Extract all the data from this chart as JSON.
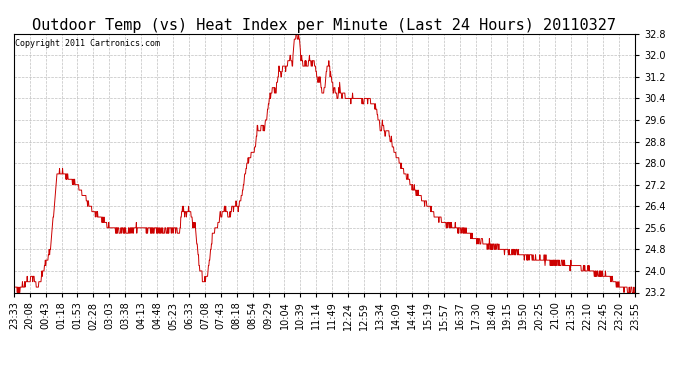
{
  "title": "Outdoor Temp (vs) Heat Index per Minute (Last 24 Hours) 20110327",
  "copyright_text": "Copyright 2011 Cartronics.com",
  "ylim": [
    23.2,
    32.8
  ],
  "yticks": [
    23.2,
    24.0,
    24.8,
    25.6,
    26.4,
    27.2,
    28.0,
    28.8,
    29.6,
    30.4,
    31.2,
    32.0,
    32.8
  ],
  "line_color": "#cc0000",
  "bg_color": "#ffffff",
  "grid_color": "#b0b0b0",
  "title_fontsize": 11,
  "tick_fontsize": 7,
  "x_labels": [
    "23:33",
    "20:08",
    "00:43",
    "01:18",
    "01:53",
    "02:28",
    "03:03",
    "03:38",
    "04:13",
    "04:48",
    "05:23",
    "06:33",
    "07:08",
    "07:43",
    "08:18",
    "08:54",
    "09:29",
    "10:04",
    "10:39",
    "11:14",
    "11:49",
    "12:24",
    "12:59",
    "13:34",
    "14:09",
    "14:44",
    "15:19",
    "15:57",
    "16:37",
    "17:30",
    "18:40",
    "19:15",
    "19:50",
    "20:25",
    "21:00",
    "21:35",
    "22:10",
    "22:45",
    "23:20",
    "23:55"
  ],
  "keypoints": [
    [
      0,
      23.35
    ],
    [
      10,
      23.3
    ],
    [
      45,
      23.8
    ],
    [
      55,
      23.35
    ],
    [
      85,
      24.8
    ],
    [
      100,
      27.6
    ],
    [
      110,
      27.7
    ],
    [
      120,
      27.55
    ],
    [
      130,
      27.4
    ],
    [
      145,
      27.25
    ],
    [
      155,
      26.95
    ],
    [
      165,
      26.7
    ],
    [
      180,
      26.3
    ],
    [
      200,
      26.0
    ],
    [
      215,
      25.7
    ],
    [
      230,
      25.55
    ],
    [
      245,
      25.52
    ],
    [
      260,
      25.5
    ],
    [
      275,
      25.52
    ],
    [
      285,
      25.6
    ],
    [
      295,
      25.6
    ],
    [
      305,
      25.52
    ],
    [
      315,
      25.5
    ],
    [
      335,
      25.52
    ],
    [
      355,
      25.5
    ],
    [
      370,
      25.52
    ],
    [
      385,
      25.5
    ],
    [
      390,
      26.3
    ],
    [
      400,
      26.1
    ],
    [
      405,
      26.35
    ],
    [
      410,
      26.2
    ],
    [
      415,
      25.7
    ],
    [
      420,
      25.6
    ],
    [
      430,
      24.2
    ],
    [
      440,
      23.6
    ],
    [
      450,
      24.0
    ],
    [
      460,
      25.3
    ],
    [
      475,
      25.8
    ],
    [
      480,
      26.1
    ],
    [
      490,
      26.3
    ],
    [
      500,
      26.0
    ],
    [
      505,
      26.4
    ],
    [
      510,
      26.3
    ],
    [
      515,
      26.5
    ],
    [
      520,
      26.3
    ],
    [
      530,
      27.0
    ],
    [
      540,
      28.0
    ],
    [
      550,
      28.3
    ],
    [
      560,
      28.6
    ],
    [
      565,
      29.4
    ],
    [
      570,
      29.1
    ],
    [
      575,
      29.5
    ],
    [
      580,
      29.2
    ],
    [
      585,
      29.6
    ],
    [
      590,
      30.2
    ],
    [
      595,
      30.5
    ],
    [
      600,
      30.8
    ],
    [
      605,
      30.6
    ],
    [
      610,
      30.9
    ],
    [
      615,
      31.5
    ],
    [
      620,
      31.2
    ],
    [
      625,
      31.6
    ],
    [
      630,
      31.5
    ],
    [
      635,
      31.8
    ],
    [
      640,
      32.0
    ],
    [
      645,
      31.7
    ],
    [
      650,
      32.5
    ],
    [
      655,
      32.8
    ],
    [
      658,
      32.6
    ],
    [
      660,
      32.8
    ],
    [
      663,
      32.5
    ],
    [
      665,
      31.8
    ],
    [
      668,
      32.0
    ],
    [
      670,
      31.6
    ],
    [
      675,
      31.8
    ],
    [
      680,
      31.5
    ],
    [
      685,
      31.9
    ],
    [
      690,
      31.6
    ],
    [
      695,
      31.8
    ],
    [
      700,
      31.5
    ],
    [
      705,
      31.0
    ],
    [
      710,
      31.2
    ],
    [
      715,
      30.5
    ],
    [
      720,
      30.8
    ],
    [
      725,
      31.5
    ],
    [
      730,
      31.7
    ],
    [
      735,
      31.2
    ],
    [
      740,
      30.8
    ],
    [
      750,
      30.5
    ],
    [
      755,
      30.8
    ],
    [
      760,
      30.4
    ],
    [
      765,
      30.6
    ],
    [
      770,
      30.3
    ],
    [
      775,
      30.5
    ],
    [
      780,
      30.3
    ],
    [
      785,
      30.45
    ],
    [
      790,
      30.4
    ],
    [
      800,
      30.35
    ],
    [
      810,
      30.3
    ],
    [
      815,
      30.4
    ],
    [
      820,
      30.3
    ],
    [
      825,
      30.35
    ],
    [
      830,
      30.3
    ],
    [
      835,
      30.2
    ],
    [
      840,
      30.05
    ],
    [
      845,
      29.6
    ],
    [
      850,
      29.2
    ],
    [
      855,
      29.5
    ],
    [
      860,
      29.0
    ],
    [
      865,
      29.3
    ],
    [
      870,
      29.1
    ],
    [
      880,
      28.5
    ],
    [
      890,
      28.1
    ],
    [
      900,
      27.8
    ],
    [
      910,
      27.5
    ],
    [
      920,
      27.2
    ],
    [
      930,
      27.0
    ],
    [
      940,
      26.8
    ],
    [
      950,
      26.6
    ],
    [
      960,
      26.4
    ],
    [
      970,
      26.2
    ],
    [
      980,
      26.0
    ],
    [
      990,
      25.9
    ],
    [
      1000,
      25.7
    ],
    [
      1010,
      25.65
    ],
    [
      1020,
      25.6
    ],
    [
      1030,
      25.55
    ],
    [
      1040,
      25.5
    ],
    [
      1060,
      25.3
    ],
    [
      1080,
      25.1
    ],
    [
      1100,
      25.0
    ],
    [
      1110,
      24.9
    ],
    [
      1120,
      24.85
    ],
    [
      1130,
      24.8
    ],
    [
      1140,
      24.75
    ],
    [
      1160,
      24.7
    ],
    [
      1180,
      24.6
    ],
    [
      1200,
      24.5
    ],
    [
      1220,
      24.4
    ],
    [
      1240,
      24.35
    ],
    [
      1260,
      24.3
    ],
    [
      1280,
      24.25
    ],
    [
      1300,
      24.2
    ],
    [
      1310,
      24.15
    ],
    [
      1320,
      24.1
    ],
    [
      1330,
      24.05
    ],
    [
      1340,
      24.0
    ],
    [
      1350,
      23.95
    ],
    [
      1360,
      23.9
    ],
    [
      1370,
      23.85
    ],
    [
      1380,
      23.75
    ],
    [
      1390,
      23.6
    ],
    [
      1400,
      23.45
    ],
    [
      1410,
      23.35
    ],
    [
      1420,
      23.3
    ],
    [
      1430,
      23.3
    ],
    [
      1435,
      23.25
    ],
    [
      1439,
      23.2
    ]
  ]
}
